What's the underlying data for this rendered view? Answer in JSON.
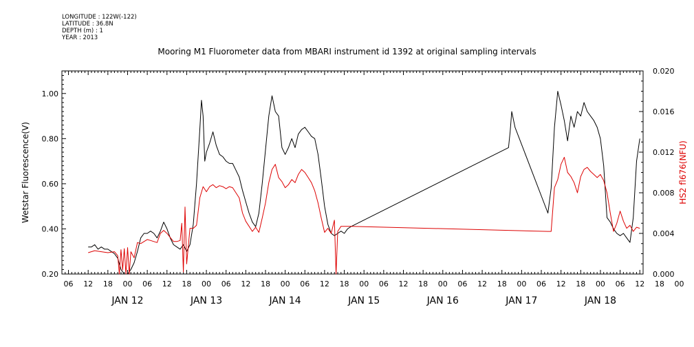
{
  "meta": {
    "longitude": "LONGITUDE : 122W(-122)",
    "latitude": "LATITUDE : 36.8N",
    "depth": "DEPTH (m) : 1",
    "year": "YEAR : 2013"
  },
  "chart_data": {
    "type": "line",
    "title": "Mooring M1 Fluorometer data from MBARI instrument id 1392 at original sampling intervals",
    "ylabel_left": "Wetstar Fluorescence(V)",
    "ylabel_right": "HS2 fl676(NFU)",
    "ylim_left": [
      0.2,
      1.1
    ],
    "ylim_right": [
      0.0,
      0.02
    ],
    "yticks_left": [
      "0.20",
      "0.40",
      "0.60",
      "0.80",
      "1.00"
    ],
    "yticks_right": [
      "0.000",
      "0.004",
      "0.008",
      "0.012",
      "0.016",
      "0.020"
    ],
    "x_hour_ticks": [
      "06",
      "12",
      "18",
      "00",
      "06",
      "12",
      "18",
      "00",
      "06",
      "12",
      "18",
      "00",
      "06",
      "12",
      "18",
      "00",
      "06",
      "12",
      "18",
      "00",
      "06",
      "12",
      "18",
      "00",
      "06",
      "12",
      "18",
      "00",
      "06",
      "12",
      "18",
      "00"
    ],
    "x_day_labels": [
      "JAN 12",
      "JAN 13",
      "JAN 14",
      "JAN 15",
      "JAN 16",
      "JAN 17",
      "JAN 18"
    ],
    "grid": false,
    "series": [
      {
        "name": "Wetstar Fluorescence(V)",
        "color": "#000000",
        "axis": "left",
        "points": [
          [
            0,
            0.32
          ],
          [
            1,
            0.32
          ],
          [
            2,
            0.33
          ],
          [
            3,
            0.31
          ],
          [
            4,
            0.32
          ],
          [
            5,
            0.31
          ],
          [
            6,
            0.31
          ],
          [
            7,
            0.3
          ],
          [
            8,
            0.29
          ],
          [
            9,
            0.27
          ],
          [
            10,
            0.22
          ],
          [
            11,
            0.2
          ],
          [
            12,
            0.2
          ],
          [
            13,
            0.22
          ],
          [
            14,
            0.25
          ],
          [
            15,
            0.3
          ],
          [
            16,
            0.36
          ],
          [
            17,
            0.38
          ],
          [
            18,
            0.38
          ],
          [
            19,
            0.39
          ],
          [
            20,
            0.38
          ],
          [
            21,
            0.36
          ],
          [
            22,
            0.39
          ],
          [
            23,
            0.43
          ],
          [
            24,
            0.4
          ],
          [
            25,
            0.36
          ],
          [
            26,
            0.33
          ],
          [
            27,
            0.32
          ],
          [
            28,
            0.31
          ],
          [
            29,
            0.33
          ],
          [
            30,
            0.3
          ],
          [
            31,
            0.33
          ],
          [
            32,
            0.42
          ],
          [
            33,
            0.6
          ],
          [
            34,
            0.84
          ],
          [
            34.5,
            0.97
          ],
          [
            35,
            0.9
          ],
          [
            35.5,
            0.7
          ],
          [
            36,
            0.74
          ],
          [
            37,
            0.78
          ],
          [
            38,
            0.83
          ],
          [
            39,
            0.77
          ],
          [
            40,
            0.73
          ],
          [
            41,
            0.72
          ],
          [
            42,
            0.7
          ],
          [
            43,
            0.69
          ],
          [
            44,
            0.69
          ],
          [
            45,
            0.66
          ],
          [
            46,
            0.63
          ],
          [
            47,
            0.57
          ],
          [
            48,
            0.52
          ],
          [
            49,
            0.47
          ],
          [
            50,
            0.43
          ],
          [
            51,
            0.41
          ],
          [
            52,
            0.47
          ],
          [
            53,
            0.6
          ],
          [
            54,
            0.75
          ],
          [
            55,
            0.9
          ],
          [
            56,
            0.99
          ],
          [
            57,
            0.92
          ],
          [
            58,
            0.9
          ],
          [
            59,
            0.76
          ],
          [
            60,
            0.73
          ],
          [
            61,
            0.76
          ],
          [
            62,
            0.8
          ],
          [
            63,
            0.76
          ],
          [
            64,
            0.82
          ],
          [
            65,
            0.84
          ],
          [
            66,
            0.85
          ],
          [
            67,
            0.83
          ],
          [
            68,
            0.81
          ],
          [
            69,
            0.8
          ],
          [
            70,
            0.73
          ],
          [
            71,
            0.62
          ],
          [
            72,
            0.5
          ],
          [
            73,
            0.42
          ],
          [
            74,
            0.38
          ],
          [
            75,
            0.37
          ],
          [
            76,
            0.38
          ],
          [
            77,
            0.39
          ],
          [
            78,
            0.38
          ],
          [
            79,
            0.4
          ],
          [
            80,
            0.41
          ],
          [
            128,
            0.76
          ],
          [
            128.5,
            0.83
          ],
          [
            129,
            0.92
          ],
          [
            130,
            0.85
          ],
          [
            140,
            0.47
          ],
          [
            141,
            0.58
          ],
          [
            142,
            0.85
          ],
          [
            143,
            1.01
          ],
          [
            144,
            0.95
          ],
          [
            145,
            0.88
          ],
          [
            146,
            0.79
          ],
          [
            147,
            0.9
          ],
          [
            148,
            0.85
          ],
          [
            149,
            0.92
          ],
          [
            150,
            0.9
          ],
          [
            151,
            0.96
          ],
          [
            152,
            0.92
          ],
          [
            153,
            0.9
          ],
          [
            154,
            0.88
          ],
          [
            155,
            0.85
          ],
          [
            156,
            0.8
          ],
          [
            157,
            0.68
          ],
          [
            158,
            0.45
          ],
          [
            159,
            0.43
          ],
          [
            160,
            0.4
          ],
          [
            161,
            0.38
          ],
          [
            162,
            0.37
          ],
          [
            163,
            0.38
          ],
          [
            164,
            0.36
          ],
          [
            165,
            0.34
          ],
          [
            166,
            0.45
          ],
          [
            167,
            0.7
          ],
          [
            168,
            0.8
          ]
        ]
      },
      {
        "name": "HS2 fl676(NFU)",
        "color": "#dd0000",
        "axis": "right",
        "points": [
          [
            0,
            0.0021
          ],
          [
            2,
            0.0023
          ],
          [
            4,
            0.0022
          ],
          [
            6,
            0.0021
          ],
          [
            8,
            0.0022
          ],
          [
            9,
            0.0018
          ],
          [
            9.5,
            0.0
          ],
          [
            10,
            0.0024
          ],
          [
            10.5,
            0.0004
          ],
          [
            11,
            0.0025
          ],
          [
            11.5,
            0.0
          ],
          [
            12,
            0.0026
          ],
          [
            12.5,
            0.0
          ],
          [
            13,
            0.0022
          ],
          [
            14,
            0.0016
          ],
          [
            15,
            0.0031
          ],
          [
            16,
            0.003
          ],
          [
            17,
            0.0032
          ],
          [
            18,
            0.0034
          ],
          [
            19,
            0.0033
          ],
          [
            20,
            0.0032
          ],
          [
            21,
            0.0031
          ],
          [
            22,
            0.004
          ],
          [
            23,
            0.0043
          ],
          [
            24,
            0.004
          ],
          [
            25,
            0.0036
          ],
          [
            26,
            0.0032
          ],
          [
            27,
            0.0032
          ],
          [
            28,
            0.0033
          ],
          [
            28.5,
            0.005
          ],
          [
            29,
            0.0002
          ],
          [
            29.5,
            0.0066
          ],
          [
            30,
            0.001
          ],
          [
            31,
            0.0045
          ],
          [
            32,
            0.0045
          ],
          [
            33,
            0.0048
          ],
          [
            34,
            0.0075
          ],
          [
            35,
            0.0086
          ],
          [
            36,
            0.0081
          ],
          [
            37,
            0.0086
          ],
          [
            38,
            0.0088
          ],
          [
            39,
            0.0085
          ],
          [
            40,
            0.0087
          ],
          [
            41,
            0.0086
          ],
          [
            42,
            0.0084
          ],
          [
            43,
            0.0086
          ],
          [
            44,
            0.0085
          ],
          [
            45,
            0.008
          ],
          [
            46,
            0.0075
          ],
          [
            47,
            0.006
          ],
          [
            48,
            0.0052
          ],
          [
            49,
            0.0047
          ],
          [
            50,
            0.0042
          ],
          [
            51,
            0.0046
          ],
          [
            52,
            0.0041
          ],
          [
            53,
            0.0055
          ],
          [
            54,
            0.007
          ],
          [
            55,
            0.009
          ],
          [
            56,
            0.0103
          ],
          [
            57,
            0.0108
          ],
          [
            58,
            0.0095
          ],
          [
            59,
            0.0091
          ],
          [
            60,
            0.0085
          ],
          [
            61,
            0.0088
          ],
          [
            62,
            0.0093
          ],
          [
            63,
            0.009
          ],
          [
            64,
            0.0098
          ],
          [
            65,
            0.0103
          ],
          [
            66,
            0.01
          ],
          [
            67,
            0.0095
          ],
          [
            68,
            0.009
          ],
          [
            69,
            0.0082
          ],
          [
            70,
            0.007
          ],
          [
            71,
            0.0055
          ],
          [
            72,
            0.0041
          ],
          [
            73,
            0.0045
          ],
          [
            74,
            0.004
          ],
          [
            75,
            0.0053
          ],
          [
            75.5,
            0.0
          ],
          [
            76,
            0.0042
          ],
          [
            77,
            0.0047
          ],
          [
            80,
            0.0047
          ],
          [
            140,
            0.0042
          ],
          [
            141,
            0.0042
          ],
          [
            142,
            0.0085
          ],
          [
            143,
            0.0093
          ],
          [
            144,
            0.0108
          ],
          [
            145,
            0.0115
          ],
          [
            146,
            0.01
          ],
          [
            147,
            0.0096
          ],
          [
            148,
            0.009
          ],
          [
            149,
            0.008
          ],
          [
            150,
            0.0096
          ],
          [
            151,
            0.0103
          ],
          [
            152,
            0.0105
          ],
          [
            153,
            0.0101
          ],
          [
            154,
            0.0098
          ],
          [
            155,
            0.0095
          ],
          [
            156,
            0.0098
          ],
          [
            157,
            0.0092
          ],
          [
            158,
            0.008
          ],
          [
            159,
            0.006
          ],
          [
            160,
            0.0042
          ],
          [
            161,
            0.005
          ],
          [
            162,
            0.0062
          ],
          [
            163,
            0.0052
          ],
          [
            164,
            0.0045
          ],
          [
            165,
            0.0048
          ],
          [
            166,
            0.0042
          ],
          [
            167,
            0.0046
          ],
          [
            168,
            0.0045
          ]
        ]
      }
    ]
  }
}
